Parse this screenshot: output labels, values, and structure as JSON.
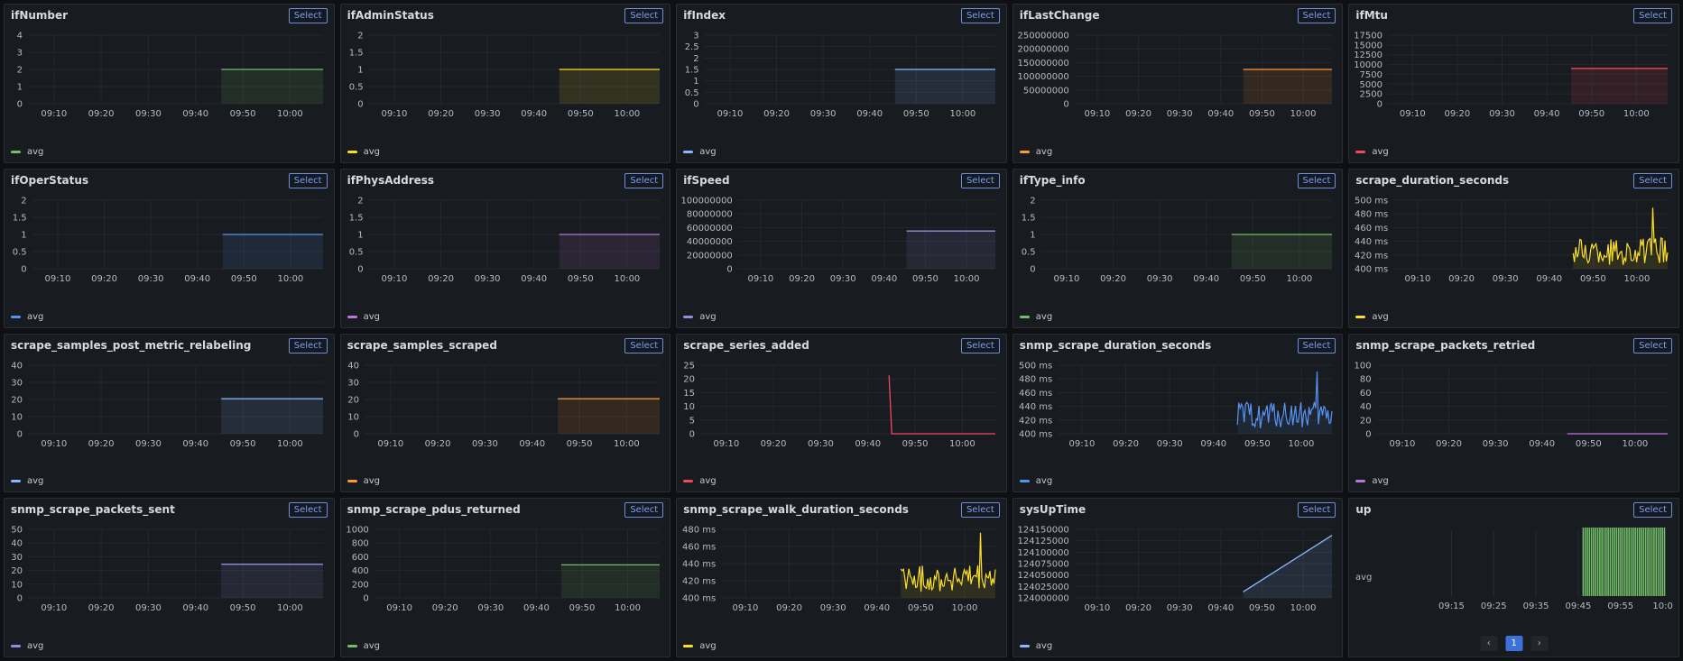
{
  "common": {
    "select_label": "Select",
    "legend_label": "avg"
  },
  "x_ticks": [
    "09:10",
    "09:20",
    "09:30",
    "09:40",
    "09:50",
    "10:00"
  ],
  "colors": {
    "green": "#73bf69",
    "yellow": "#fade2a",
    "blue": "#8ab8ff",
    "orange": "#ff9830",
    "red": "#f2495c",
    "blue2": "#5794f2",
    "purple": "#b877d9",
    "slate": "#8f8fe0"
  },
  "panels": [
    {
      "title": "ifNumber",
      "color": "green",
      "y_ticks": [
        "4",
        "3",
        "2",
        "1",
        "0"
      ],
      "ylim": [
        0,
        4
      ],
      "kind": "flat",
      "value": 2
    },
    {
      "title": "ifAdminStatus",
      "color": "yellow",
      "y_ticks": [
        "2",
        "1.5",
        "1",
        "0.5",
        "0"
      ],
      "ylim": [
        0,
        2
      ],
      "kind": "flat",
      "value": 1
    },
    {
      "title": "ifIndex",
      "color": "blue",
      "y_ticks": [
        "3",
        "2.5",
        "2",
        "1.5",
        "1",
        "0.5",
        "0"
      ],
      "ylim": [
        0,
        3
      ],
      "kind": "flat",
      "value": 1.5
    },
    {
      "title": "ifLastChange",
      "color": "orange",
      "y_ticks": [
        "250000000",
        "200000000",
        "150000000",
        "100000000",
        "50000000",
        "0"
      ],
      "ylim": [
        0,
        250000000
      ],
      "kind": "flat",
      "value": 125000000
    },
    {
      "title": "ifMtu",
      "color": "red",
      "y_ticks": [
        "17500",
        "15000",
        "12500",
        "10000",
        "7500",
        "5000",
        "2500",
        "0"
      ],
      "ylim": [
        0,
        17500
      ],
      "kind": "flat",
      "value": 9000
    },
    {
      "title": "ifOperStatus",
      "color": "blue2",
      "y_ticks": [
        "2",
        "1.5",
        "1",
        "0.5",
        "0"
      ],
      "ylim": [
        0,
        2
      ],
      "kind": "flat",
      "value": 1
    },
    {
      "title": "ifPhysAddress",
      "color": "purple",
      "y_ticks": [
        "2",
        "1.5",
        "1",
        "0.5",
        "0"
      ],
      "ylim": [
        0,
        2
      ],
      "kind": "flat",
      "value": 1
    },
    {
      "title": "ifSpeed",
      "color": "slate",
      "y_ticks": [
        "100000000",
        "80000000",
        "60000000",
        "40000000",
        "20000000",
        "0"
      ],
      "ylim": [
        0,
        100000000
      ],
      "kind": "flat",
      "value": 55000000
    },
    {
      "title": "ifType_info",
      "color": "green",
      "y_ticks": [
        "2",
        "1.5",
        "1",
        "0.5",
        "0"
      ],
      "ylim": [
        0,
        2
      ],
      "kind": "flat",
      "value": 1
    },
    {
      "title": "scrape_duration_seconds",
      "color": "yellow",
      "y_ticks": [
        "500 ms",
        "480 ms",
        "460 ms",
        "440 ms",
        "420 ms",
        "400 ms"
      ],
      "ylim": [
        390,
        500
      ],
      "kind": "noise",
      "base": 418,
      "amp": 22,
      "peak": 488
    },
    {
      "title": "scrape_samples_post_metric_relabeling",
      "color": "blue",
      "y_ticks": [
        "40",
        "30",
        "20",
        "10",
        "0"
      ],
      "ylim": [
        0,
        45
      ],
      "kind": "flat",
      "value": 23
    },
    {
      "title": "scrape_samples_scraped",
      "color": "orange",
      "y_ticks": [
        "40",
        "30",
        "20",
        "10",
        "0"
      ],
      "ylim": [
        0,
        45
      ],
      "kind": "flat",
      "value": 23
    },
    {
      "title": "scrape_series_added",
      "color": "red",
      "y_ticks": [
        "25",
        "20",
        "15",
        "10",
        "5",
        "0"
      ],
      "ylim": [
        0,
        27
      ],
      "kind": "spike",
      "value": 23
    },
    {
      "title": "snmp_scrape_duration_seconds",
      "color": "blue2",
      "y_ticks": [
        "500 ms",
        "480 ms",
        "460 ms",
        "440 ms",
        "420 ms",
        "400 ms"
      ],
      "ylim": [
        390,
        500
      ],
      "kind": "noise",
      "base": 420,
      "amp": 22,
      "peak": 490
    },
    {
      "title": "snmp_scrape_packets_retried",
      "color": "purple",
      "y_ticks": [
        "100",
        "80",
        "60",
        "40",
        "20",
        "0"
      ],
      "ylim": [
        0,
        100
      ],
      "kind": "flat",
      "value": 0
    },
    {
      "title": "snmp_scrape_packets_sent",
      "color": "slate",
      "y_ticks": [
        "50",
        "40",
        "30",
        "20",
        "10",
        "0"
      ],
      "ylim": [
        0,
        55
      ],
      "kind": "flat",
      "value": 27
    },
    {
      "title": "snmp_scrape_pdus_returned",
      "color": "green",
      "y_ticks": [
        "1000",
        "800",
        "600",
        "400",
        "200",
        "0"
      ],
      "ylim": [
        0,
        1100
      ],
      "kind": "flat",
      "value": 530
    },
    {
      "title": "snmp_scrape_walk_duration_seconds",
      "color": "yellow",
      "y_ticks": [
        "480 ms",
        "460 ms",
        "440 ms",
        "420 ms",
        "400 ms"
      ],
      "ylim": [
        390,
        490
      ],
      "kind": "noise",
      "base": 418,
      "amp": 20,
      "peak": 485
    },
    {
      "title": "sysUpTime",
      "color": "blue",
      "y_ticks": [
        "124150000",
        "124125000",
        "124100000",
        "124075000",
        "124050000",
        "124025000",
        "124000000"
      ],
      "ylim": [
        123990000,
        124160000
      ],
      "kind": "ramp",
      "from": 124005000,
      "to": 124145000
    },
    {
      "title": "up",
      "color": "green",
      "kind": "state",
      "row_label": "avg",
      "x_ticks": [
        "09:15",
        "09:25",
        "09:35",
        "09:45",
        "09:55",
        "10:0"
      ],
      "pagination": {
        "prev": "‹",
        "page": "1",
        "next": "›"
      }
    }
  ]
}
